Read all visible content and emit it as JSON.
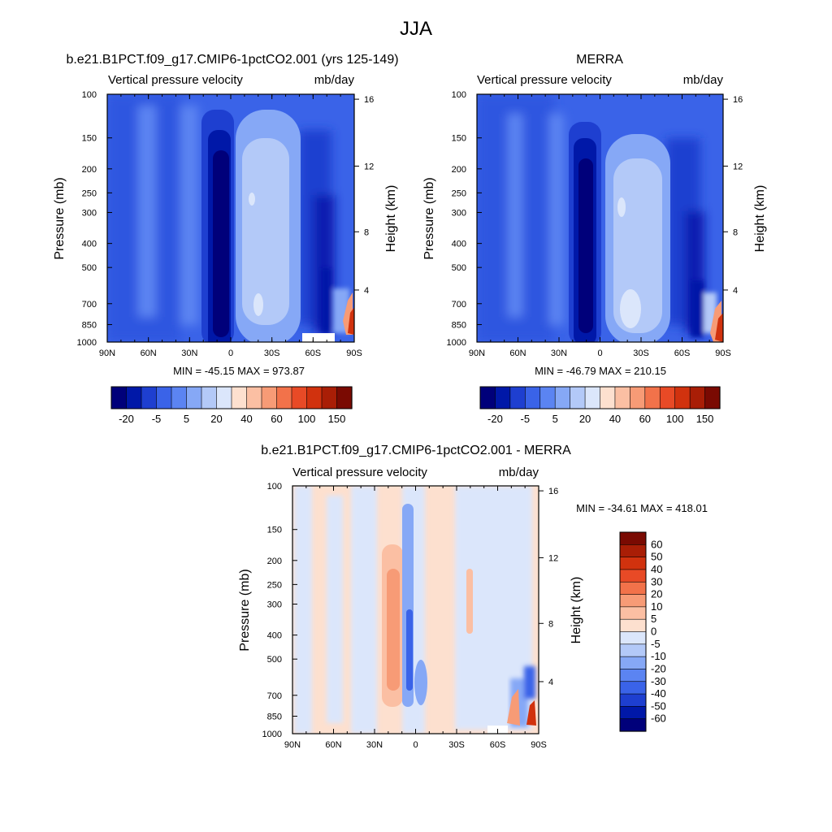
{
  "figure_title": "JJA",
  "colors": {
    "cb1": [
      "#00007a",
      "#0018a8",
      "#1e3fd0",
      "#3a63e8",
      "#5b84f2",
      "#86a8f6",
      "#b3c9f8",
      "#dbe6fb",
      "#fde0cf",
      "#fbbfa3",
      "#f79b76",
      "#f2724a",
      "#e84a26",
      "#d1320e",
      "#a91e06",
      "#7a0a02"
    ],
    "cb2": [
      "#00007a",
      "#0018a8",
      "#1e3fd0",
      "#3a63e8",
      "#5b84f2",
      "#86a8f6",
      "#b3c9f8",
      "#dbe6fb",
      "#fde0cf",
      "#fbbfa3",
      "#f79b76",
      "#f2724a",
      "#e84a26",
      "#d1320e",
      "#a91e06",
      "#7a0a02"
    ]
  },
  "chart_data": [
    {
      "type": "heatmap",
      "id": "panel-model",
      "title": "b.e21.B1PCT.f09_g17.CMIP6-1pctCO2.001 (yrs 125-149)",
      "left_label": "Vertical pressure velocity",
      "right_label": "mb/day",
      "ylabel": "Pressure (mb)",
      "ylabel_right": "Height (km)",
      "x_ticks": [
        "90N",
        "60N",
        "30N",
        "0",
        "30S",
        "60S",
        "90S"
      ],
      "y_ticks": [
        "100",
        "150",
        "200",
        "250",
        "300",
        "400",
        "500",
        "700",
        "850",
        "1000"
      ],
      "y_right_ticks": [
        "16",
        "12",
        "8",
        "4"
      ],
      "stats": "MIN = -45.15  MAX = 973.87",
      "colorbar_labels": [
        "-20",
        "-5",
        "5",
        "20",
        "40",
        "60",
        "100",
        "150"
      ],
      "min": -45.15,
      "max": 973.87
    },
    {
      "type": "heatmap",
      "id": "panel-merra",
      "title": "MERRA",
      "left_label": "Vertical pressure velocity",
      "right_label": "mb/day",
      "ylabel": "Pressure (mb)",
      "ylabel_right": "Height (km)",
      "x_ticks": [
        "90N",
        "60N",
        "30N",
        "0",
        "30S",
        "60S",
        "90S"
      ],
      "y_ticks": [
        "100",
        "150",
        "200",
        "250",
        "300",
        "400",
        "500",
        "700",
        "850",
        "1000"
      ],
      "y_right_ticks": [
        "16",
        "12",
        "8",
        "4"
      ],
      "stats": "MIN = -46.79  MAX = 210.15",
      "colorbar_labels": [
        "-20",
        "-5",
        "5",
        "20",
        "40",
        "60",
        "100",
        "150"
      ],
      "min": -46.79,
      "max": 210.15
    },
    {
      "type": "heatmap",
      "id": "panel-diff",
      "title": "b.e21.B1PCT.f09_g17.CMIP6-1pctCO2.001 - MERRA",
      "left_label": "Vertical pressure velocity",
      "right_label": "mb/day",
      "ylabel": "Pressure (mb)",
      "ylabel_right": "Height (km)",
      "x_ticks": [
        "90N",
        "60N",
        "30N",
        "0",
        "30S",
        "60S",
        "90S"
      ],
      "y_ticks": [
        "100",
        "150",
        "200",
        "250",
        "300",
        "400",
        "500",
        "700",
        "850",
        "1000"
      ],
      "y_right_ticks": [
        "16",
        "12",
        "8",
        "4"
      ],
      "stats": "MIN = -34.61  MAX = 418.01",
      "colorbar_labels": [
        "60",
        "50",
        "40",
        "30",
        "20",
        "10",
        "5",
        "0",
        "-5",
        "-10",
        "-20",
        "-30",
        "-40",
        "-50",
        "-60"
      ],
      "min": -34.61,
      "max": 418.01
    }
  ]
}
